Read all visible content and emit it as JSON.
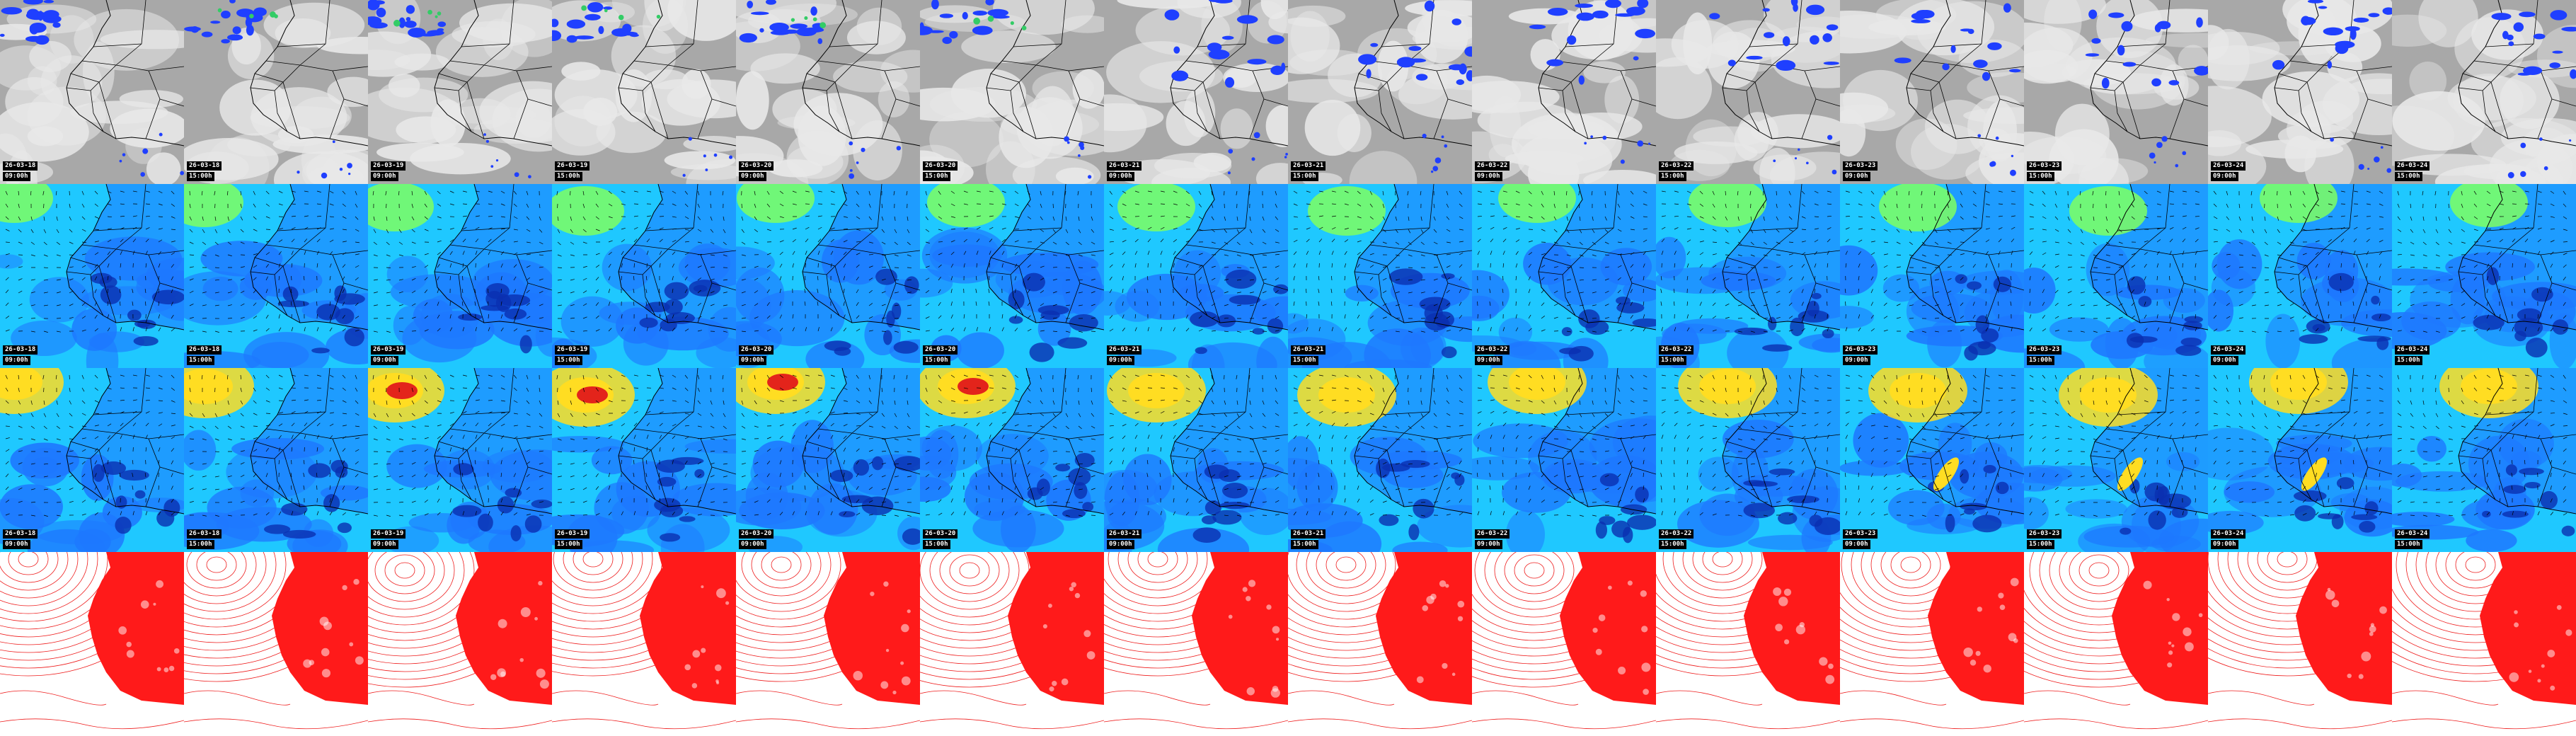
{
  "panels_per_row": 14,
  "frames": [
    {
      "date": "26-03-18",
      "time": "09:00h"
    },
    {
      "date": "26-03-18",
      "time": "15:00h"
    },
    {
      "date": "26-03-19",
      "time": "09:00h"
    },
    {
      "date": "26-03-19",
      "time": "15:00h"
    },
    {
      "date": "26-03-20",
      "time": "09:00h"
    },
    {
      "date": "26-03-20",
      "time": "15:00h"
    },
    {
      "date": "26-03-21",
      "time": "09:00h"
    },
    {
      "date": "26-03-21",
      "time": "15:00h"
    },
    {
      "date": "26-03-22",
      "time": "09:00h"
    },
    {
      "date": "26-03-22",
      "time": "15:00h"
    },
    {
      "date": "26-03-23",
      "time": "09:00h"
    },
    {
      "date": "26-03-23",
      "time": "15:00h"
    },
    {
      "date": "26-03-24",
      "time": "09:00h"
    },
    {
      "date": "26-03-24",
      "time": "15:00h"
    }
  ],
  "rows": [
    {
      "kind": "cloud",
      "show_labels": true,
      "colors": {
        "base": "#a8a8a8",
        "light": "#e8e8e8",
        "precip": "#1f3fff",
        "precip_hi": "#33cc66",
        "border": "#000000"
      }
    },
    {
      "kind": "wind",
      "show_labels": true,
      "colors": {
        "base": "#1fc8ff",
        "mid": "#1e78ff",
        "low": "#0a2fb0",
        "high": "#7fff60",
        "arrow": "#000000",
        "border": "#000000"
      }
    },
    {
      "kind": "wind_strong",
      "show_labels": true,
      "colors": {
        "base": "#1fc8ff",
        "mid": "#1e78ff",
        "low": "#0a2fb0",
        "high": "#ffdd22",
        "extreme": "#e3241b",
        "arrow": "#000000",
        "border": "#000000"
      }
    },
    {
      "kind": "pressure",
      "show_labels": false,
      "colors": {
        "line": "#ee1c1c",
        "land": "#ff1a1a",
        "bg": "#ffffff"
      }
    }
  ]
}
